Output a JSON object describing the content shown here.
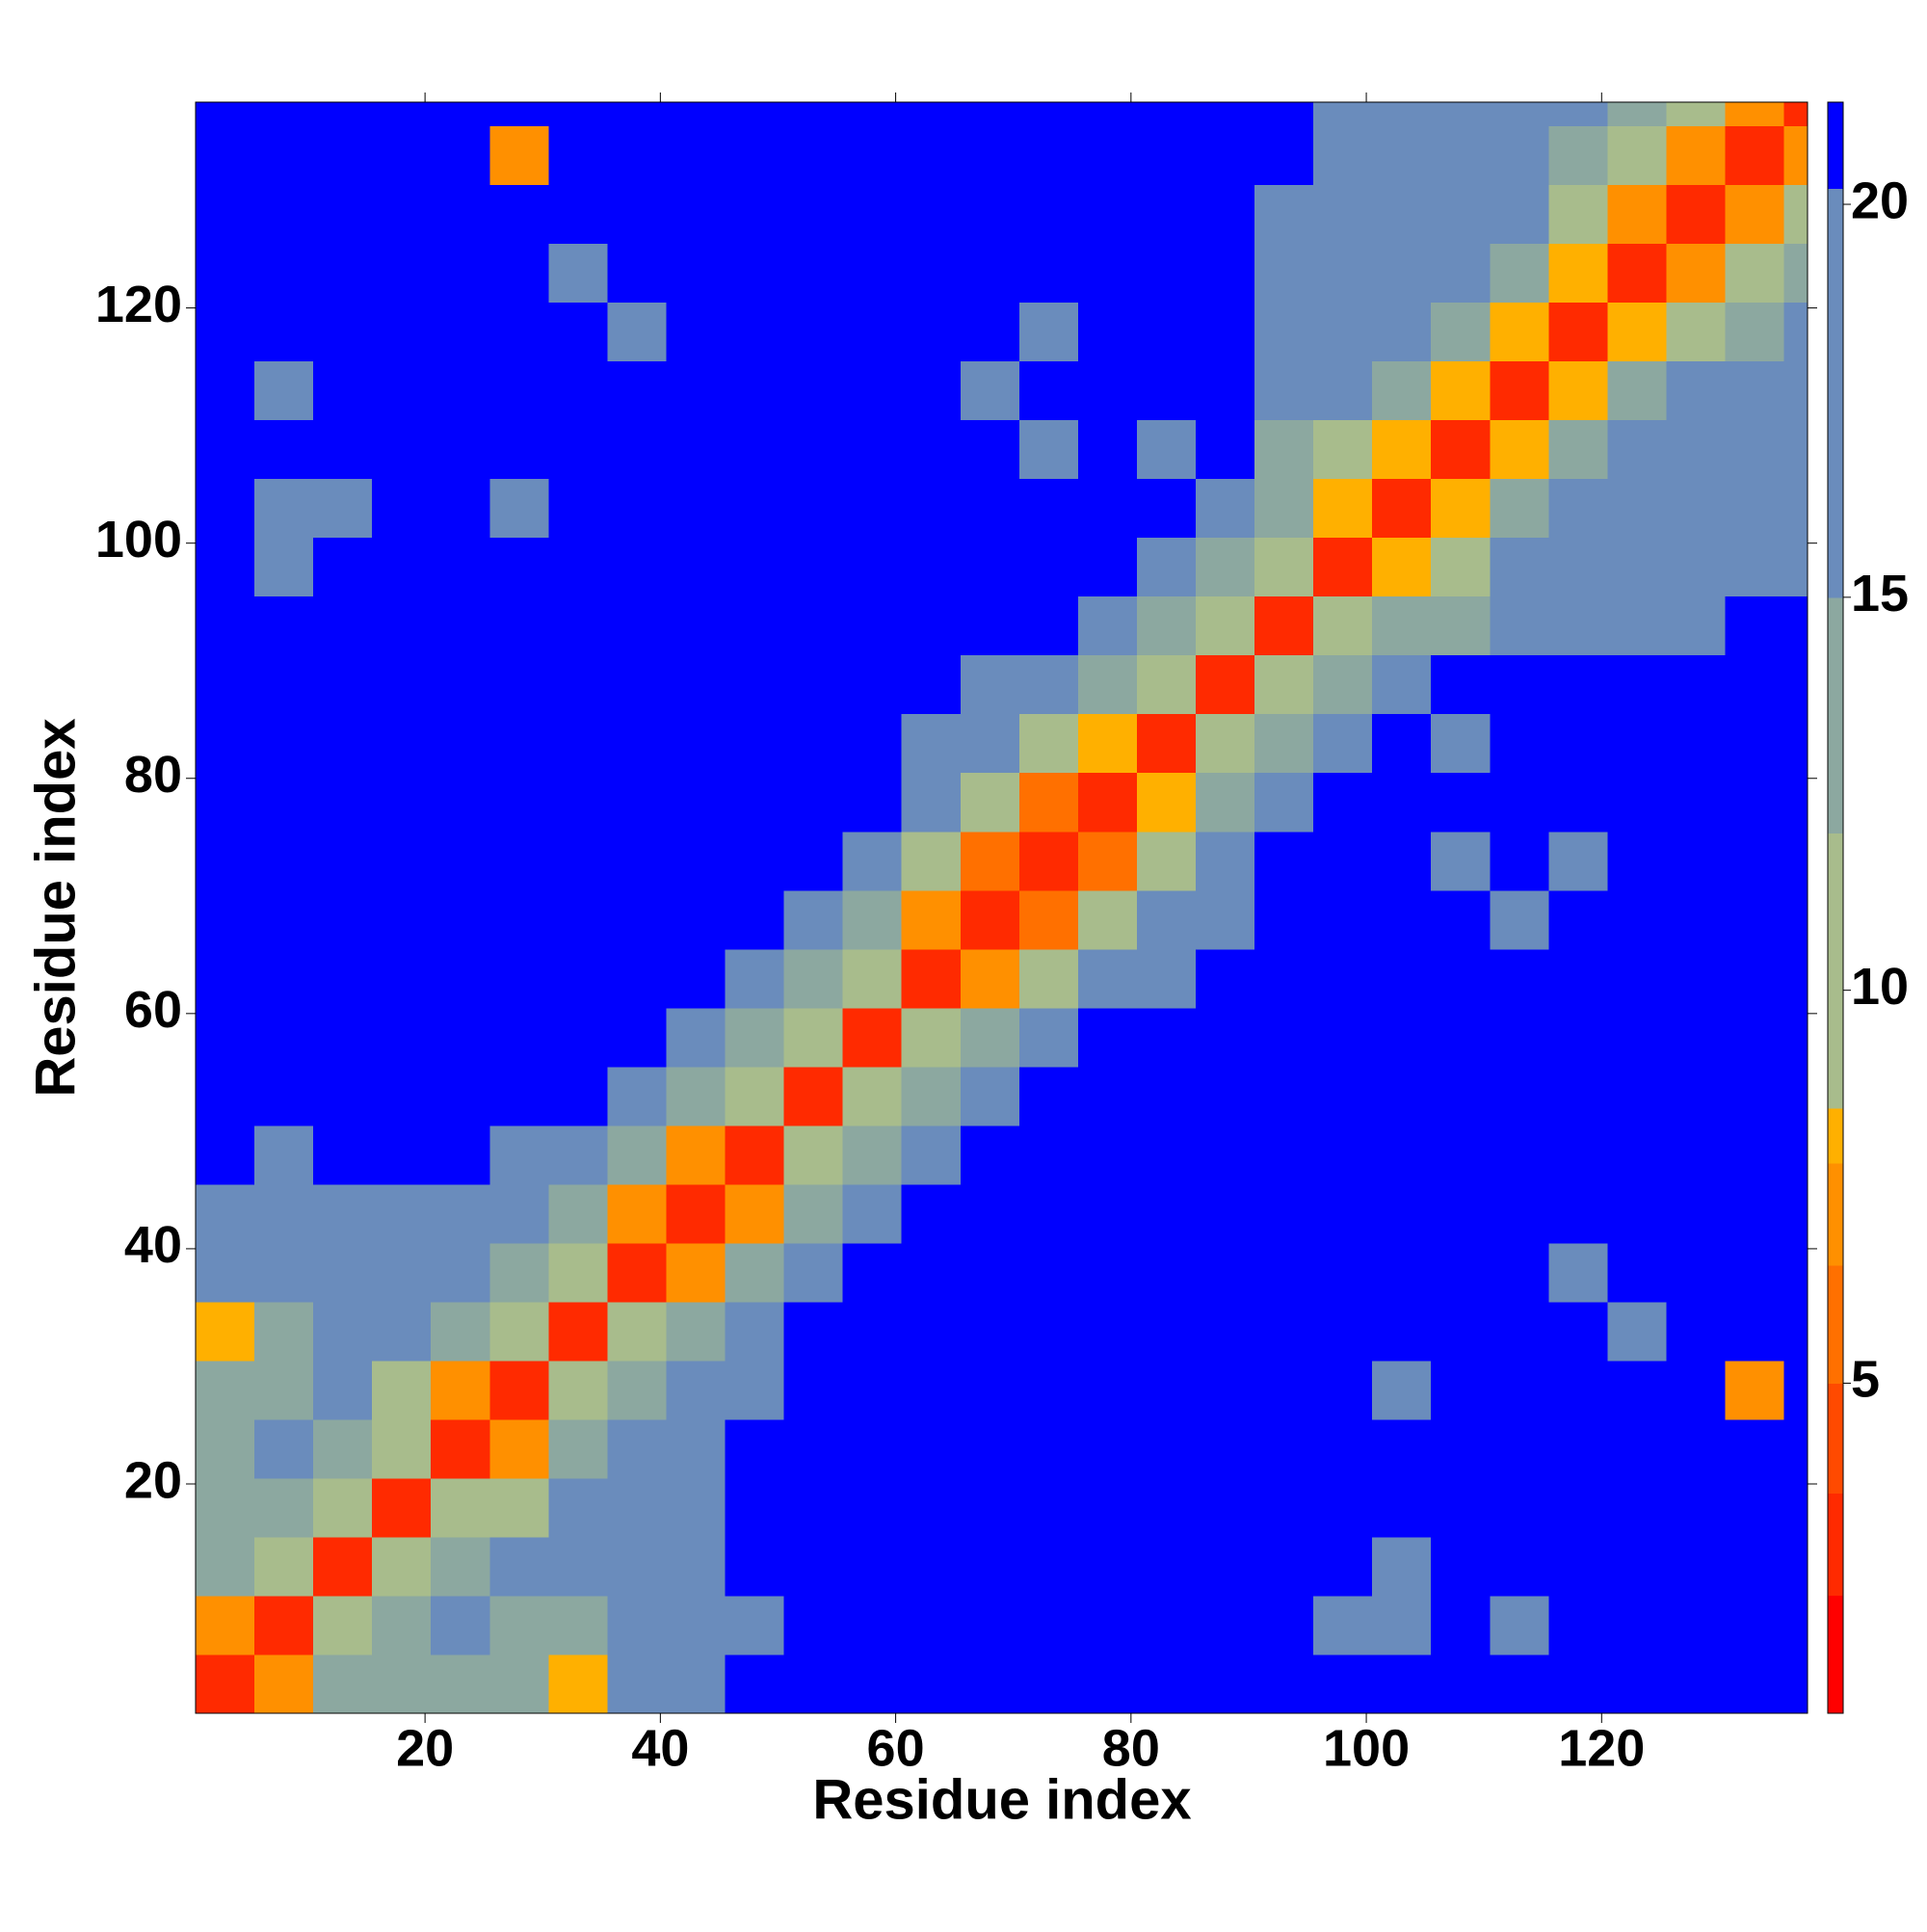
{
  "chart_data": {
    "type": "heatmap",
    "x_label": "Residue index",
    "y_label": "Residue index",
    "x_bins": [
      0.5,
      5.5,
      10.5,
      15.5,
      20.5,
      25.5,
      30.5,
      35.5,
      40.5,
      45.5,
      50.5,
      55.5,
      60.5,
      65.5,
      70.5,
      75.5,
      80.5,
      85.5,
      90.5,
      95.5,
      100.5,
      105.5,
      110.5,
      115.5,
      120.5,
      125.5,
      130.5,
      135.5,
      137.5
    ],
    "y_bins": [
      0.5,
      5.5,
      10.5,
      15.5,
      20.5,
      25.5,
      30.5,
      35.5,
      40.5,
      45.5,
      50.5,
      55.5,
      60.5,
      65.5,
      70.5,
      75.5,
      80.5,
      85.5,
      90.5,
      95.5,
      100.5,
      105.5,
      110.5,
      115.5,
      120.5,
      125.5,
      130.5,
      135.5,
      137.5
    ],
    "values": [
      [
        3,
        7,
        12,
        13,
        14,
        12,
        8,
        19,
        19,
        21,
        21,
        21,
        21,
        21,
        21,
        21,
        21,
        21,
        21,
        21,
        21,
        21,
        21,
        21,
        21,
        21,
        21,
        21
      ],
      [
        7,
        3,
        9,
        12,
        15,
        14,
        13,
        18,
        19,
        19,
        21,
        21,
        21,
        21,
        21,
        21,
        21,
        21,
        21,
        19,
        19,
        21,
        19,
        21,
        21,
        21,
        21,
        21
      ],
      [
        12,
        9,
        3,
        9,
        12,
        15,
        15,
        18,
        19,
        21,
        21,
        21,
        21,
        21,
        21,
        21,
        21,
        21,
        21,
        21,
        19,
        21,
        21,
        21,
        21,
        21,
        21,
        21
      ],
      [
        13,
        12,
        9,
        3,
        9,
        10,
        15,
        17,
        19,
        21,
        21,
        21,
        21,
        21,
        21,
        21,
        21,
        21,
        21,
        21,
        21,
        21,
        21,
        21,
        21,
        21,
        21,
        21
      ],
      [
        14,
        15,
        12,
        9,
        3,
        7,
        12,
        17,
        18,
        21,
        21,
        21,
        21,
        21,
        21,
        21,
        21,
        21,
        21,
        21,
        21,
        21,
        21,
        21,
        21,
        21,
        21,
        21
      ],
      [
        12,
        14,
        15,
        10,
        7,
        3,
        9,
        13,
        17,
        19,
        21,
        21,
        21,
        21,
        21,
        21,
        21,
        21,
        21,
        21,
        19,
        21,
        21,
        21,
        21,
        21,
        7,
        21
      ],
      [
        8,
        13,
        15,
        15,
        12,
        9,
        3,
        9,
        13,
        17,
        21,
        21,
        21,
        21,
        21,
        21,
        21,
        21,
        21,
        21,
        21,
        21,
        21,
        21,
        19,
        21,
        21,
        21
      ],
      [
        19,
        18,
        18,
        17,
        17,
        13,
        9,
        3,
        7,
        12,
        18,
        21,
        21,
        21,
        21,
        21,
        21,
        21,
        21,
        21,
        21,
        21,
        21,
        19,
        21,
        21,
        21,
        21
      ],
      [
        19,
        19,
        19,
        19,
        18,
        17,
        13,
        7,
        3,
        7,
        12,
        18,
        21,
        21,
        21,
        21,
        21,
        21,
        21,
        21,
        21,
        21,
        21,
        21,
        21,
        21,
        21,
        21
      ],
      [
        21,
        19,
        21,
        21,
        21,
        19,
        17,
        12,
        7,
        3,
        9,
        13,
        19,
        21,
        21,
        21,
        21,
        21,
        21,
        21,
        21,
        21,
        21,
        21,
        21,
        21,
        21,
        21
      ],
      [
        21,
        21,
        21,
        21,
        21,
        21,
        21,
        18,
        12,
        9,
        3,
        9,
        14,
        19,
        21,
        21,
        21,
        21,
        21,
        21,
        21,
        21,
        21,
        21,
        21,
        21,
        21,
        21
      ],
      [
        21,
        21,
        21,
        21,
        21,
        21,
        21,
        21,
        18,
        13,
        9,
        3,
        9,
        14,
        19,
        21,
        21,
        21,
        21,
        21,
        21,
        21,
        21,
        21,
        21,
        21,
        21,
        21
      ],
      [
        21,
        21,
        21,
        21,
        21,
        21,
        21,
        21,
        21,
        19,
        14,
        9,
        3,
        7,
        11,
        16,
        19,
        21,
        21,
        21,
        21,
        21,
        21,
        21,
        21,
        21,
        21,
        21
      ],
      [
        21,
        21,
        21,
        21,
        21,
        21,
        21,
        21,
        21,
        21,
        19,
        14,
        7,
        3,
        6,
        10,
        15,
        19,
        21,
        21,
        21,
        21,
        19,
        21,
        21,
        21,
        21,
        21
      ],
      [
        21,
        21,
        21,
        21,
        21,
        21,
        21,
        21,
        21,
        21,
        21,
        19,
        11,
        6,
        3,
        6,
        11,
        17,
        21,
        21,
        21,
        19,
        21,
        19,
        21,
        21,
        21,
        21
      ],
      [
        21,
        21,
        21,
        21,
        21,
        21,
        21,
        21,
        21,
        21,
        21,
        21,
        16,
        10,
        6,
        3,
        8,
        13,
        19,
        21,
        21,
        21,
        21,
        21,
        21,
        21,
        21,
        21
      ],
      [
        21,
        21,
        21,
        21,
        21,
        21,
        21,
        21,
        21,
        21,
        21,
        21,
        19,
        15,
        11,
        8,
        3,
        9,
        14,
        19,
        21,
        19,
        21,
        21,
        21,
        21,
        21,
        21
      ],
      [
        21,
        21,
        21,
        21,
        21,
        21,
        21,
        21,
        21,
        21,
        21,
        21,
        21,
        19,
        17,
        13,
        9,
        3,
        9,
        14,
        18,
        21,
        21,
        21,
        21,
        21,
        21,
        21
      ],
      [
        21,
        21,
        21,
        21,
        21,
        21,
        21,
        21,
        21,
        21,
        21,
        21,
        21,
        21,
        21,
        19,
        14,
        9,
        3,
        9,
        13,
        14,
        18,
        19,
        19,
        19,
        21,
        21
      ],
      [
        21,
        19,
        21,
        21,
        21,
        21,
        21,
        21,
        21,
        21,
        21,
        21,
        21,
        21,
        21,
        21,
        19,
        14,
        9,
        3,
        8,
        9,
        15,
        17,
        17,
        17,
        18,
        18
      ],
      [
        21,
        19,
        19,
        21,
        21,
        19,
        21,
        21,
        21,
        21,
        21,
        21,
        21,
        21,
        21,
        21,
        21,
        18,
        13,
        8,
        3,
        8,
        12,
        17,
        16,
        17,
        18,
        19
      ],
      [
        21,
        21,
        21,
        21,
        21,
        21,
        21,
        21,
        21,
        21,
        21,
        21,
        21,
        21,
        19,
        21,
        19,
        21,
        14,
        9,
        8,
        3,
        8,
        12,
        17,
        17,
        17,
        18
      ],
      [
        21,
        19,
        21,
        21,
        21,
        21,
        21,
        21,
        21,
        21,
        21,
        21,
        21,
        19,
        21,
        21,
        21,
        21,
        18,
        15,
        12,
        8,
        3,
        8,
        12,
        15,
        17,
        18
      ],
      [
        21,
        21,
        21,
        21,
        21,
        21,
        21,
        19,
        21,
        21,
        21,
        21,
        21,
        21,
        19,
        21,
        21,
        21,
        19,
        17,
        17,
        12,
        8,
        3,
        8,
        9,
        14,
        17
      ],
      [
        21,
        21,
        21,
        21,
        21,
        21,
        19,
        21,
        21,
        21,
        21,
        21,
        21,
        21,
        21,
        21,
        21,
        21,
        19,
        17,
        16,
        17,
        12,
        8,
        3,
        7,
        9,
        14
      ],
      [
        21,
        21,
        21,
        21,
        21,
        21,
        21,
        21,
        21,
        21,
        21,
        21,
        21,
        21,
        21,
        21,
        21,
        21,
        19,
        17,
        17,
        17,
        15,
        9,
        7,
        3,
        7,
        11
      ],
      [
        21,
        21,
        21,
        21,
        21,
        7,
        21,
        21,
        21,
        21,
        21,
        21,
        21,
        21,
        21,
        21,
        21,
        21,
        21,
        18,
        18,
        17,
        17,
        14,
        9,
        7,
        3,
        7
      ],
      [
        21,
        21,
        21,
        21,
        21,
        21,
        21,
        21,
        21,
        21,
        21,
        21,
        21,
        21,
        21,
        21,
        21,
        21,
        21,
        18,
        19,
        18,
        18,
        17,
        14,
        11,
        7,
        3
      ]
    ],
    "xlim": [
      0.5,
      137.5
    ],
    "ylim": [
      0.5,
      137.5
    ],
    "xticks": [
      20,
      40,
      60,
      80,
      100,
      120
    ],
    "yticks": [
      20,
      40,
      60,
      80,
      100,
      120
    ],
    "colorbar": {
      "level_bounds": [
        0.8,
        2.3,
        3.6,
        5,
        6.5,
        7.8,
        8.5,
        12,
        15,
        20.2,
        21.3
      ],
      "level_colors": [
        "#ff0000",
        "#ff2a00",
        "#ff4a00",
        "#ff7000",
        "#ff9000",
        "#ffb000",
        "#a8bc8c",
        "#8ca8a0",
        "#6a8cbc",
        "#0000ff"
      ],
      "ticks": [
        5,
        10,
        15,
        20
      ]
    }
  }
}
